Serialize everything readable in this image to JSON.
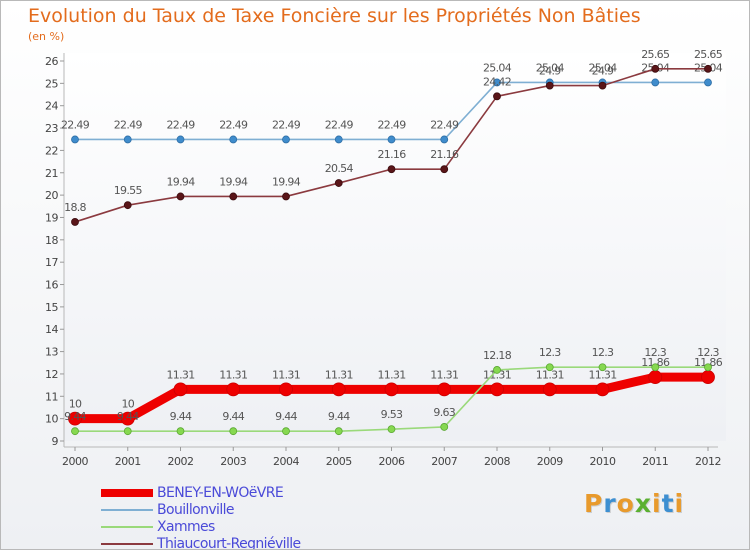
{
  "chart_data": {
    "type": "line",
    "title": "Evolution du Taux de Taxe Foncière sur les Propriétés Non Bâties",
    "ylabel": "(en %)",
    "xlabel": "",
    "ylim": [
      9,
      26
    ],
    "yticks": [
      9,
      10,
      11,
      12,
      13,
      14,
      15,
      16,
      17,
      18,
      19,
      20,
      21,
      22,
      23,
      24,
      25,
      26
    ],
    "categories": [
      "2000",
      "2001",
      "2002",
      "2003",
      "2004",
      "2005",
      "2006",
      "2007",
      "2008",
      "2009",
      "2010",
      "2011",
      "2012"
    ],
    "series": [
      {
        "name": "BENEY-EN-WOëVRE",
        "color": "#ee0000",
        "values": [
          10,
          10,
          11.31,
          11.31,
          11.31,
          11.31,
          11.31,
          11.31,
          11.31,
          11.31,
          11.31,
          11.86,
          11.86
        ],
        "labels": [
          "10",
          "10",
          "11.31",
          "11.31",
          "11.31",
          "11.31",
          "11.31",
          "11.31",
          "11.31",
          "11.31",
          "11.31",
          "11.86",
          "11.86"
        ]
      },
      {
        "name": "Bouillonville",
        "color": "#7fafd3",
        "values": [
          22.49,
          22.49,
          22.49,
          22.49,
          22.49,
          22.49,
          22.49,
          22.49,
          25.04,
          25.04,
          25.04,
          25.04,
          25.04
        ],
        "labels": [
          "22.49",
          "22.49",
          "22.49",
          "22.49",
          "22.49",
          "22.49",
          "22.49",
          "22.49",
          "25.04",
          "25.04",
          "25.04",
          "25.04",
          "25.04"
        ]
      },
      {
        "name": "Xammes",
        "color": "#9ad97a",
        "values": [
          9.44,
          9.44,
          9.44,
          9.44,
          9.44,
          9.44,
          9.53,
          9.63,
          12.18,
          12.3,
          12.3,
          12.3,
          12.3
        ],
        "labels": [
          "9.44",
          "9.44",
          "9.44",
          "9.44",
          "9.44",
          "9.44",
          "9.53",
          "9.63",
          "12.18",
          "12.3",
          "12.3",
          "12.3",
          "12.3"
        ]
      },
      {
        "name": "Thiaucourt-Regniéville",
        "color": "#8b3a3f",
        "values": [
          18.8,
          19.55,
          19.94,
          19.94,
          19.94,
          20.54,
          21.16,
          21.16,
          24.42,
          24.9,
          24.9,
          25.65,
          25.65
        ],
        "labels": [
          "18.8",
          "19.55",
          "19.94",
          "19.94",
          "19.94",
          "20.54",
          "21.16",
          "21.16",
          "24.42",
          "24.9",
          "24.9",
          "25.65",
          "25.65"
        ]
      }
    ],
    "legend_position": "bottom-left"
  },
  "logo": {
    "letters": [
      "P",
      "r",
      "o",
      "x",
      "i",
      "t",
      "i"
    ],
    "colors": [
      "#e89a2c",
      "#3d8fd1",
      "#e89a2c",
      "#5ab030",
      "#e89a2c",
      "#3d8fd1",
      "#e89a2c"
    ]
  }
}
